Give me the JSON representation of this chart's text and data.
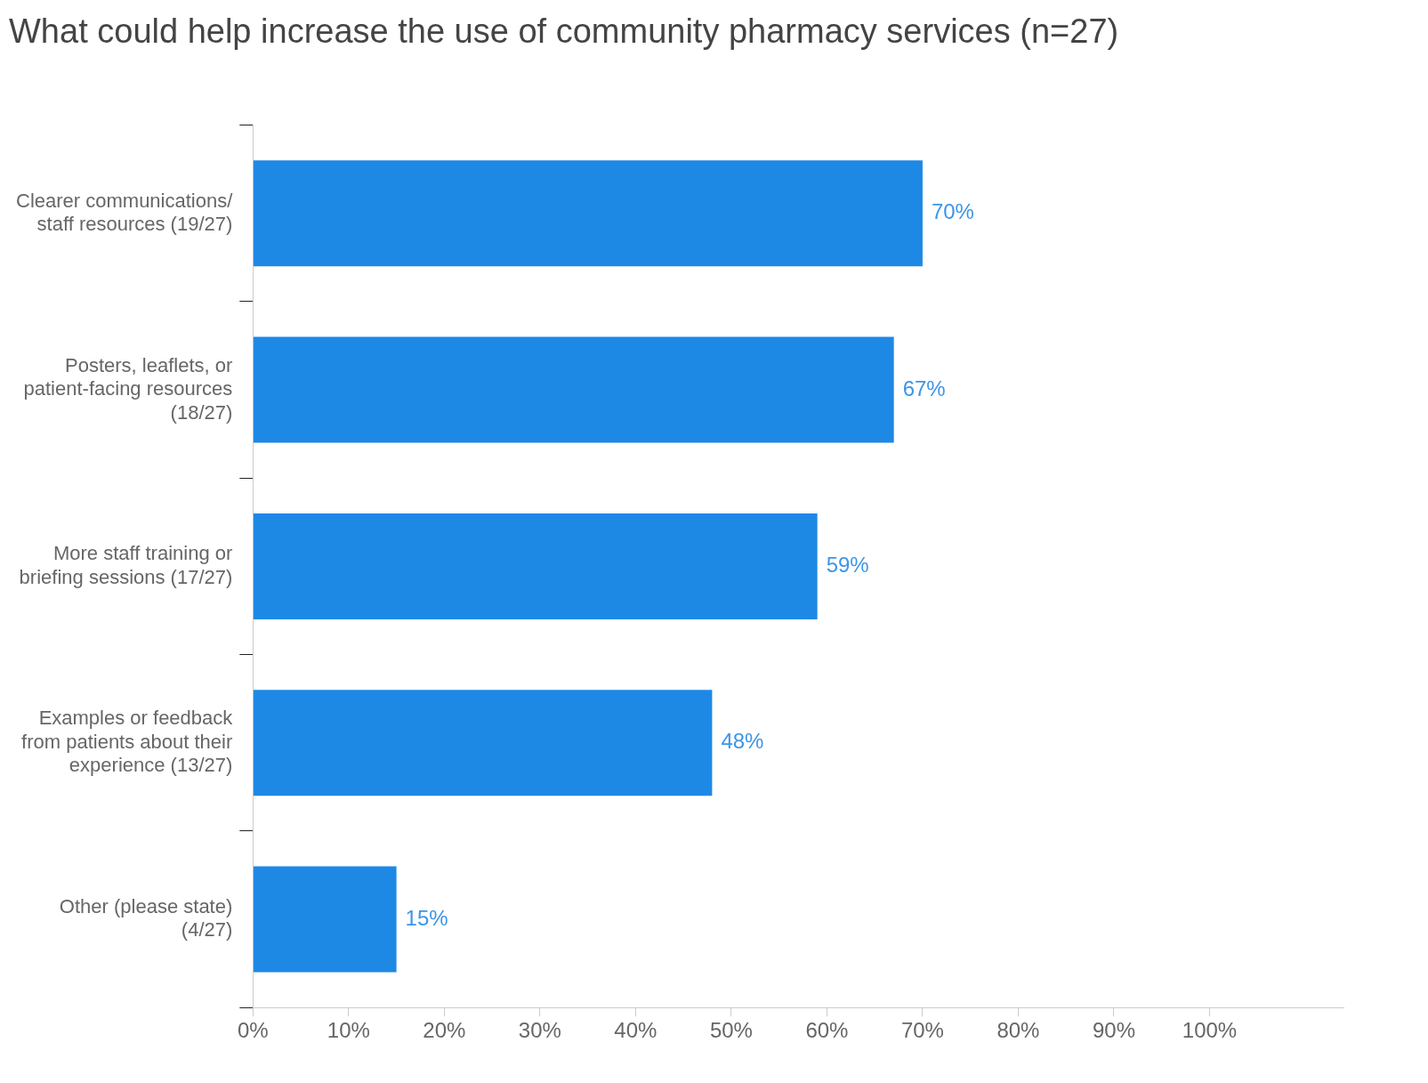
{
  "chart_data": {
    "type": "bar",
    "orientation": "horizontal",
    "title": "What could help increase the use of community pharmacy services (n=27)",
    "categories": [
      "Clearer communications/ staff resources (19/27)",
      "Posters, leaflets, or patient-facing resources (18/27)",
      "More staff training or briefing sessions (17/27)",
      "Examples or feedback from patients about their experience (13/27)",
      "Other (please state) (4/27)"
    ],
    "values": [
      70,
      67,
      59,
      48,
      15
    ],
    "value_labels": [
      "70%",
      "67%",
      "59%",
      "48%",
      "15%"
    ],
    "color": "#1e88e5",
    "xlim": [
      0,
      114
    ],
    "xticks": [
      {
        "value": 0,
        "label": "0%"
      },
      {
        "value": 10,
        "label": "10%"
      },
      {
        "value": 20,
        "label": "20%"
      },
      {
        "value": 30,
        "label": "30%"
      },
      {
        "value": 40,
        "label": "40%"
      },
      {
        "value": 50,
        "label": "50%"
      },
      {
        "value": 60,
        "label": "60%"
      },
      {
        "value": 70,
        "label": "70%"
      },
      {
        "value": 80,
        "label": "80%"
      },
      {
        "value": 90,
        "label": "90%"
      },
      {
        "value": 100,
        "label": "100%"
      }
    ],
    "grid": false,
    "legend": false
  }
}
